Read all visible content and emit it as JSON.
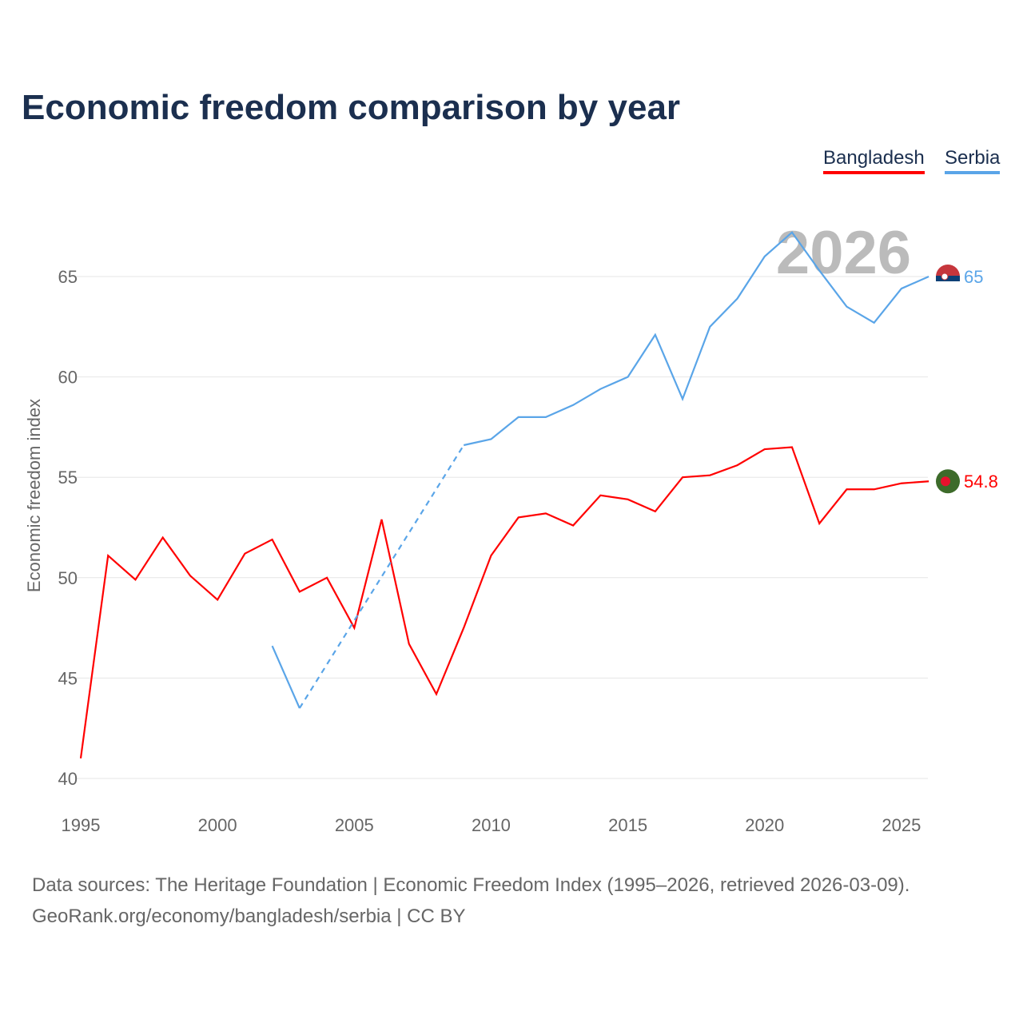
{
  "title": "Economic freedom comparison by year",
  "legend": [
    "Bangladesh",
    "Serbia"
  ],
  "source_line1": "Data sources: The Heritage Foundation | Economic Freedom Index (1995–2026, retrieved 2026-03-09).",
  "source_line2": "GeoRank.org/economy/bangladesh/serbia | CC BY",
  "chart_data": {
    "type": "line",
    "title": "Economic freedom comparison by year",
    "ylabel": "Economic freedom index",
    "xlabel": "",
    "year_label": "2026",
    "xlim": [
      1995,
      2026
    ],
    "ylim": [
      40,
      67.5
    ],
    "xticks": [
      1995,
      2000,
      2005,
      2010,
      2015,
      2020,
      2025
    ],
    "yticks": [
      40,
      45,
      50,
      55,
      60,
      65
    ],
    "grid": true,
    "legend_placement": "top-right",
    "series": [
      {
        "name": "Bangladesh",
        "color": "#ff0000",
        "end_label": "54.8",
        "x": [
          1995,
          1996,
          1997,
          1998,
          1999,
          2000,
          2001,
          2002,
          2003,
          2004,
          2005,
          2006,
          2007,
          2008,
          2009,
          2010,
          2011,
          2012,
          2013,
          2014,
          2015,
          2016,
          2017,
          2018,
          2019,
          2020,
          2021,
          2022,
          2023,
          2024,
          2025,
          2026
        ],
        "values": [
          41.0,
          51.1,
          49.9,
          52.0,
          50.1,
          48.9,
          51.2,
          51.9,
          49.3,
          50.0,
          47.5,
          52.9,
          46.7,
          44.2,
          47.5,
          51.1,
          53.0,
          53.2,
          52.6,
          54.1,
          53.9,
          53.3,
          55.0,
          55.1,
          55.6,
          56.4,
          56.5,
          52.7,
          54.4,
          54.4,
          54.7,
          54.8
        ]
      },
      {
        "name": "Serbia",
        "color": "#5aa5e8",
        "end_label": "65",
        "x": [
          2002,
          2003,
          2009,
          2010,
          2011,
          2012,
          2013,
          2014,
          2015,
          2016,
          2017,
          2018,
          2019,
          2020,
          2021,
          2022,
          2023,
          2024,
          2025,
          2026
        ],
        "values": [
          46.6,
          43.5,
          56.6,
          56.9,
          58.0,
          58.0,
          58.6,
          59.4,
          60.0,
          62.1,
          58.9,
          62.5,
          63.9,
          66.0,
          67.2,
          65.3,
          63.5,
          62.7,
          64.4,
          65.0
        ],
        "gap": [
          2003,
          2009
        ]
      }
    ]
  }
}
